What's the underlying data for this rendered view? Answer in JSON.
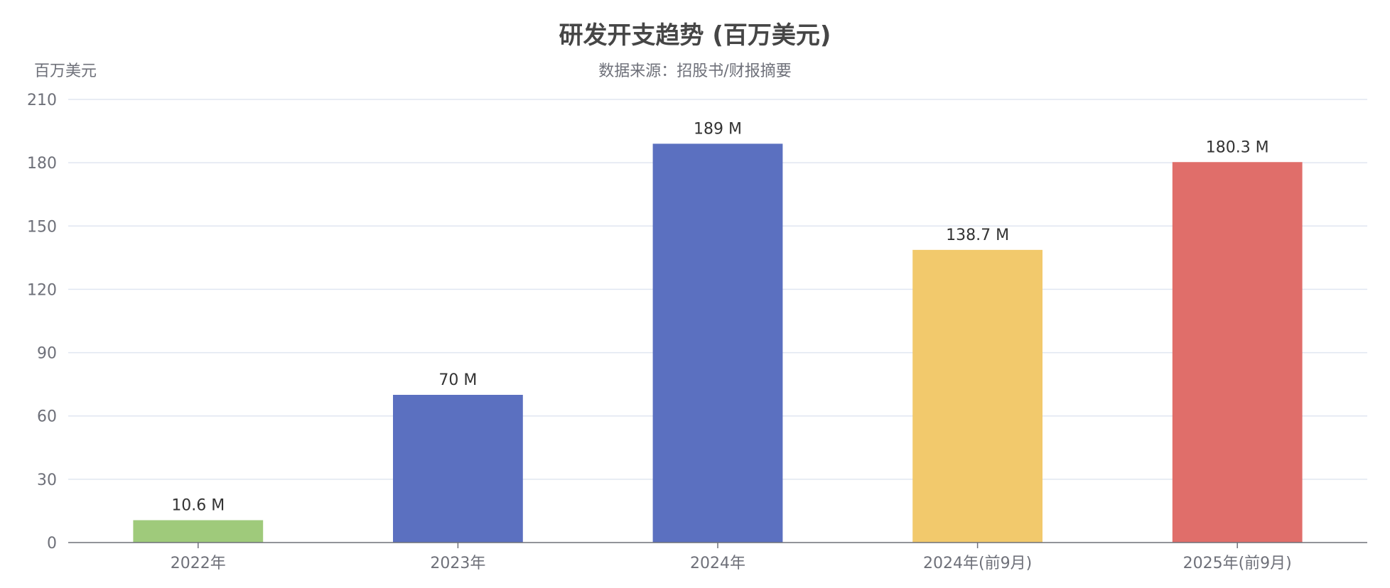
{
  "chart_data": {
    "type": "bar",
    "title": "研发开支趋势 (百万美元)",
    "subtitle": "数据来源：招股书/财报摘要",
    "ylabel": "百万美元",
    "categories": [
      "2022年",
      "2023年",
      "2024年",
      "2024年(前9月)",
      "2025年(前9月)"
    ],
    "values": [
      10.6,
      70,
      189,
      138.7,
      180.3
    ],
    "data_labels": [
      "10.6 M",
      "70 M",
      "189 M",
      "138.7 M",
      "180.3 M"
    ],
    "colors": [
      "#9fca7b",
      "#5b70c0",
      "#5b70c0",
      "#f2c96c",
      "#e06e6a"
    ],
    "ylim": [
      0,
      210
    ],
    "yticks": [
      "0",
      "30",
      "60",
      "90",
      "120",
      "150",
      "180",
      "210"
    ],
    "grid": true,
    "legend": "none"
  }
}
